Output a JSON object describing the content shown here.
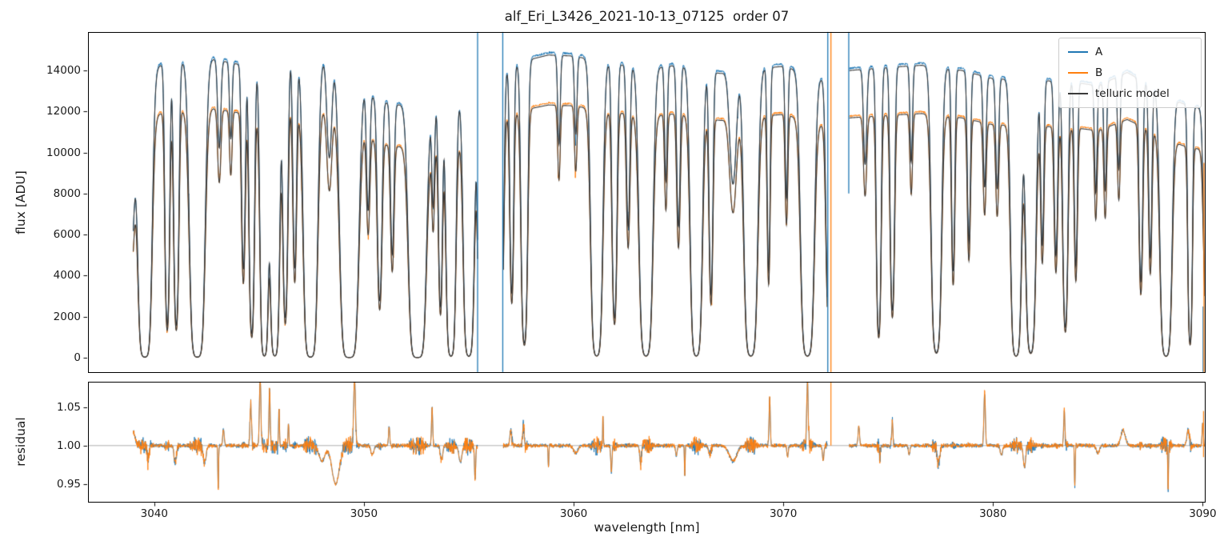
{
  "chart_data": {
    "type": "line",
    "title": "alf_Eri_L3426_2021-10-13_07125  order 07",
    "xlabel": "wavelength [nm]",
    "xlim": [
      3036.84,
      3090.1
    ],
    "xticks": {
      "values": [
        3040,
        3050,
        3060,
        3070,
        3080,
        3090
      ],
      "labels": [
        "3040",
        "3050",
        "3060",
        "3070",
        "3080",
        "3090"
      ]
    },
    "panels": {
      "top": {
        "ylabel": "flux [ADU]",
        "ylim": [
          -700,
          15870
        ],
        "yticks": {
          "values": [
            0,
            2000,
            4000,
            6000,
            8000,
            10000,
            12000,
            14000
          ],
          "labels": [
            "0",
            "2000",
            "4000",
            "6000",
            "8000",
            "10000",
            "12000",
            "14000"
          ]
        }
      },
      "bottom": {
        "ylabel": "residual",
        "ylim": [
          0.927,
          1.083
        ],
        "refline": 1.0,
        "yticks": {
          "values": [
            0.95,
            1.0,
            1.05
          ],
          "labels": [
            "0.95",
            "1.00",
            "1.05"
          ]
        }
      }
    },
    "legend": [
      {
        "name": "A",
        "color": "#1f77b4"
      },
      {
        "name": "B",
        "color": "#ff7f0e"
      },
      {
        "name": "telluric model",
        "color": "#3a3a3a"
      }
    ],
    "grid_color": "#9a9a9a",
    "segments": [
      [
        3039.0,
        3055.42
      ],
      [
        3056.65,
        3072.1
      ],
      [
        3073.15,
        3090.1
      ]
    ],
    "ratio_B": 0.835,
    "continuum_A": [
      [
        3039.0,
        13600
      ],
      [
        3040.3,
        14250
      ],
      [
        3041.6,
        14500
      ],
      [
        3042.8,
        14550
      ],
      [
        3044.0,
        14300
      ],
      [
        3045.0,
        14400
      ],
      [
        3046.3,
        14650
      ],
      [
        3047.2,
        14500
      ],
      [
        3048.6,
        14550
      ],
      [
        3049.5,
        14300
      ],
      [
        3050.5,
        12600
      ],
      [
        3051.5,
        12300
      ],
      [
        3052.5,
        12500
      ],
      [
        3053.4,
        12200
      ],
      [
        3054.3,
        12900
      ],
      [
        3055.4,
        12600
      ],
      [
        3056.7,
        14000
      ],
      [
        3057.8,
        14500
      ],
      [
        3058.8,
        14750
      ],
      [
        3060.0,
        14700
      ],
      [
        3061.0,
        14500
      ],
      [
        3062.0,
        14300
      ],
      [
        3063.0,
        14200
      ],
      [
        3064.0,
        14150
      ],
      [
        3065.0,
        14250
      ],
      [
        3066.0,
        14000
      ],
      [
        3067.0,
        13850
      ],
      [
        3068.0,
        14000
      ],
      [
        3069.0,
        14100
      ],
      [
        3070.0,
        14200
      ],
      [
        3071.0,
        13900
      ],
      [
        3072.1,
        13500
      ],
      [
        3073.2,
        14000
      ],
      [
        3075.0,
        14150
      ],
      [
        3076.6,
        14250
      ],
      [
        3078.5,
        14000
      ],
      [
        3080.0,
        13600
      ],
      [
        3082.5,
        13500
      ],
      [
        3084.0,
        13400
      ],
      [
        3085.0,
        13250
      ],
      [
        3086.4,
        13900
      ],
      [
        3087.8,
        13100
      ],
      [
        3089.0,
        12400
      ],
      [
        3090.1,
        12100
      ]
    ],
    "telluric_lines": [
      [
        3038.8,
        1.4,
        0.25
      ],
      [
        3039.55,
        6,
        0.25
      ],
      [
        3040.62,
        2.2,
        0.11
      ],
      [
        3041.05,
        2.2,
        0.12
      ],
      [
        3042.05,
        6,
        0.27
      ],
      [
        3043.1,
        0.35,
        0.1
      ],
      [
        3043.65,
        0.3,
        0.08
      ],
      [
        3044.25,
        1.2,
        0.1
      ],
      [
        3044.65,
        2.5,
        0.12
      ],
      [
        3045.25,
        5,
        0.16
      ],
      [
        3045.75,
        5,
        0.18
      ],
      [
        3046.25,
        2,
        0.12
      ],
      [
        3046.7,
        1.2,
        0.1
      ],
      [
        3047.45,
        6,
        0.25
      ],
      [
        3048.35,
        0.4,
        0.15
      ],
      [
        3049.3,
        7,
        0.32
      ],
      [
        3050.2,
        0.6,
        0.1
      ],
      [
        3050.75,
        1.5,
        0.12
      ],
      [
        3051.35,
        0.9,
        0.1
      ],
      [
        3052.55,
        7,
        0.3
      ],
      [
        3053.3,
        0.5,
        0.08
      ],
      [
        3053.65,
        1.6,
        0.1
      ],
      [
        3054.15,
        5,
        0.18
      ],
      [
        3055.0,
        5,
        0.2
      ],
      [
        3055.55,
        2.5,
        0.12
      ],
      [
        3056.55,
        2,
        0.12
      ],
      [
        3057.05,
        1.5,
        0.1
      ],
      [
        3057.65,
        3,
        0.14
      ],
      [
        3059.3,
        0.35,
        0.08
      ],
      [
        3060.1,
        0.3,
        0.08
      ],
      [
        3061.1,
        5,
        0.22
      ],
      [
        3061.95,
        2,
        0.12
      ],
      [
        3062.6,
        0.8,
        0.1
      ],
      [
        3063.45,
        5,
        0.25
      ],
      [
        3064.4,
        0.5,
        0.08
      ],
      [
        3065.0,
        0.8,
        0.1
      ],
      [
        3065.85,
        5,
        0.22
      ],
      [
        3066.55,
        1.5,
        0.1
      ],
      [
        3067.6,
        0.5,
        0.2
      ],
      [
        3068.45,
        5,
        0.25
      ],
      [
        3069.3,
        1.2,
        0.08
      ],
      [
        3070.15,
        0.6,
        0.08
      ],
      [
        3071.15,
        5,
        0.25
      ],
      [
        3072.2,
        2.5,
        0.15
      ],
      [
        3073.9,
        0.4,
        0.1
      ],
      [
        3074.55,
        2.5,
        0.11
      ],
      [
        3075.2,
        1.8,
        0.11
      ],
      [
        3076.1,
        0.4,
        0.08
      ],
      [
        3077.3,
        4,
        0.2
      ],
      [
        3078.1,
        1.2,
        0.09
      ],
      [
        3078.85,
        0.9,
        0.09
      ],
      [
        3079.6,
        0.5,
        0.09
      ],
      [
        3080.2,
        0.5,
        0.09
      ],
      [
        3081.1,
        5,
        0.2
      ],
      [
        3081.8,
        4,
        0.2
      ],
      [
        3082.35,
        0.9,
        0.09
      ],
      [
        3083.0,
        1.0,
        0.1
      ],
      [
        3083.45,
        2.2,
        0.12
      ],
      [
        3083.95,
        1.1,
        0.09
      ],
      [
        3084.9,
        0.5,
        0.08
      ],
      [
        3085.35,
        0.5,
        0.08
      ],
      [
        3086.0,
        0.4,
        0.08
      ],
      [
        3087.05,
        1.3,
        0.1
      ],
      [
        3087.5,
        1.0,
        0.09
      ],
      [
        3088.25,
        5,
        0.22
      ],
      [
        3089.4,
        2.8,
        0.1
      ],
      [
        3090.2,
        2.0,
        0.15
      ]
    ],
    "residual_features": [
      [
        3039.0,
        0.018,
        0.12
      ],
      [
        3039.7,
        -0.02,
        0.06
      ],
      [
        3041.0,
        -0.022,
        0.08
      ],
      [
        3042.4,
        -0.022,
        0.1
      ],
      [
        3043.05,
        -0.06,
        0.025
      ],
      [
        3043.3,
        0.022,
        0.05
      ],
      [
        3044.6,
        0.055,
        0.05
      ],
      [
        3045.05,
        0.09,
        0.05
      ],
      [
        3045.5,
        0.075,
        0.04
      ],
      [
        3045.95,
        0.05,
        0.03
      ],
      [
        3046.4,
        0.03,
        0.03
      ],
      [
        3048.0,
        -0.02,
        0.2
      ],
      [
        3048.65,
        -0.05,
        0.25
      ],
      [
        3049.55,
        0.09,
        0.06
      ],
      [
        3050.4,
        -0.012,
        0.1
      ],
      [
        3051.2,
        0.025,
        0.04
      ],
      [
        3053.25,
        0.05,
        0.04
      ],
      [
        3053.7,
        -0.018,
        0.08
      ],
      [
        3054.6,
        -0.022,
        0.1
      ],
      [
        3055.3,
        -0.045,
        0.04
      ],
      [
        3057.0,
        0.02,
        0.06
      ],
      [
        3057.6,
        0.028,
        0.05
      ],
      [
        3058.8,
        -0.03,
        0.025
      ],
      [
        3060.1,
        -0.01,
        0.15
      ],
      [
        3061.4,
        0.04,
        0.025
      ],
      [
        3061.8,
        -0.035,
        0.04
      ],
      [
        3063.2,
        -0.025,
        0.06
      ],
      [
        3064.9,
        -0.014,
        0.05
      ],
      [
        3065.3,
        -0.04,
        0.025
      ],
      [
        3066.5,
        -0.012,
        0.08
      ],
      [
        3067.6,
        -0.02,
        0.25
      ],
      [
        3069.35,
        0.065,
        0.04
      ],
      [
        3070.2,
        -0.015,
        0.05
      ],
      [
        3071.15,
        0.085,
        0.05
      ],
      [
        3071.9,
        -0.02,
        0.05
      ],
      [
        3073.6,
        0.025,
        0.05
      ],
      [
        3074.6,
        -0.015,
        0.04
      ],
      [
        3075.2,
        0.03,
        0.04
      ],
      [
        3076.0,
        -0.012,
        0.05
      ],
      [
        3077.4,
        -0.025,
        0.09
      ],
      [
        3079.6,
        0.07,
        0.05
      ],
      [
        3080.4,
        -0.012,
        0.08
      ],
      [
        3081.5,
        -0.028,
        0.08
      ],
      [
        3083.4,
        0.045,
        0.04
      ],
      [
        3083.9,
        -0.055,
        0.025
      ],
      [
        3085.0,
        -0.01,
        0.1
      ],
      [
        3086.2,
        0.02,
        0.15
      ],
      [
        3088.35,
        -0.06,
        0.025
      ],
      [
        3089.3,
        0.02,
        0.08
      ],
      [
        3090.0,
        0.028,
        0.04
      ]
    ],
    "spikes": [
      {
        "x": 3055.42,
        "series": "A",
        "y0": -700,
        "y1": 15870
      },
      {
        "x": 3056.62,
        "series": "A",
        "y0": -700,
        "y1": 15870
      },
      {
        "x": 3072.12,
        "series": "A",
        "y0": -700,
        "y1": 15870
      },
      {
        "x": 3072.27,
        "series": "B",
        "y0": -700,
        "y1": 15870
      },
      {
        "x": 3073.12,
        "series": "A",
        "y0": 8000,
        "y1": 15870
      },
      {
        "x": 3090.02,
        "series": "A",
        "y0": -700,
        "y1": 2500
      },
      {
        "x": 3090.06,
        "series": "B",
        "y0": -700,
        "y1": 9500
      }
    ],
    "residual_spikes": [
      {
        "x": 3072.27,
        "series": "B",
        "y0": 1.0,
        "y1": 1.083
      },
      {
        "x": 3090.04,
        "series": "B",
        "y0": 0.985,
        "y1": 1.045
      }
    ],
    "noise": {
      "data": 0.0035,
      "fringe": 0.008,
      "a_spike": 0.008,
      "b_spike": 0.02,
      "res_base": 0.003,
      "res_deep": 0.011
    }
  }
}
